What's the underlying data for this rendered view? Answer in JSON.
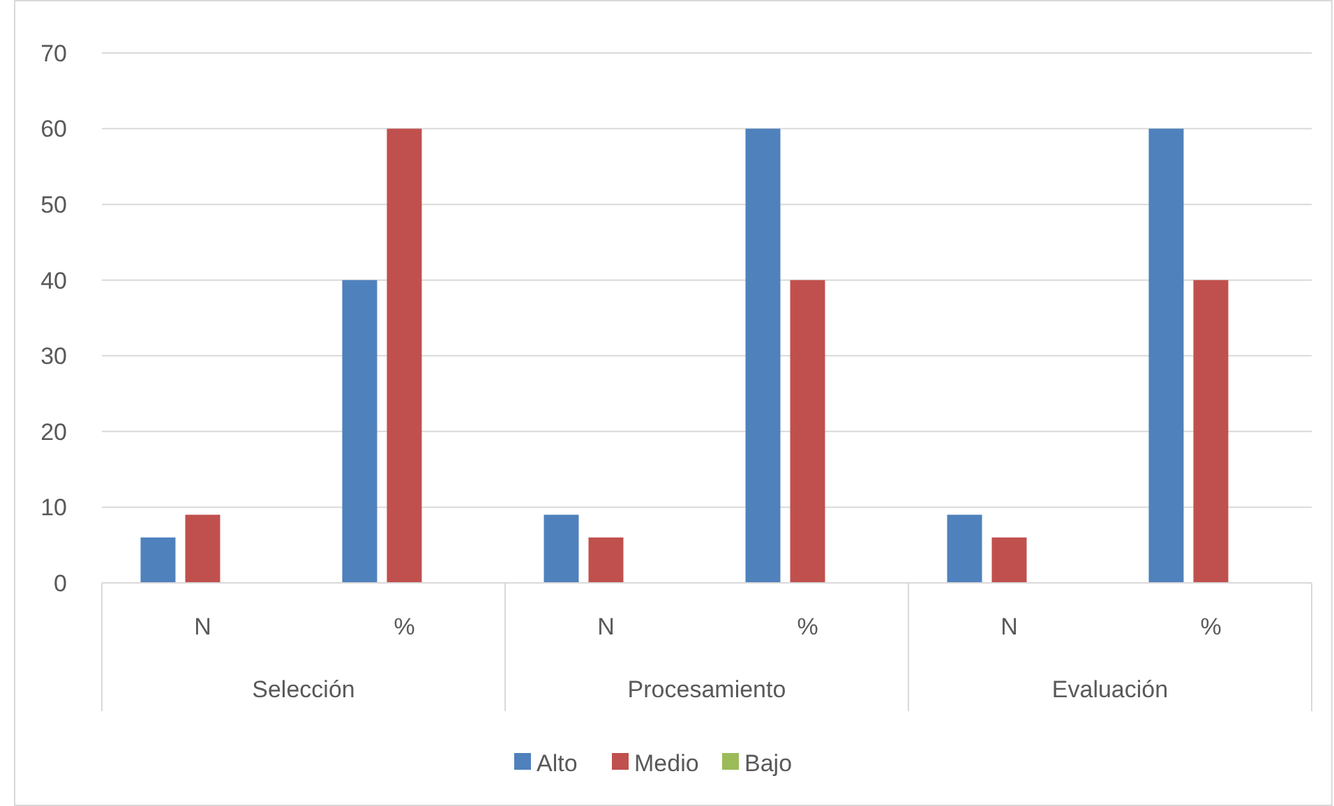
{
  "chart_data": {
    "type": "bar",
    "categories": [
      "N",
      "%",
      "N",
      "%",
      "N",
      "%"
    ],
    "annotations": [
      "Selección",
      "Procesamiento",
      "Evaluación"
    ],
    "series": [
      {
        "name": "Alto",
        "color": "#4f81bd",
        "values": [
          6,
          40,
          9,
          60,
          9,
          60
        ]
      },
      {
        "name": "Medio",
        "color": "#c0504d",
        "values": [
          9,
          60,
          6,
          40,
          6,
          40
        ]
      },
      {
        "name": "Bajo",
        "color": "#9bbb59",
        "values": [
          0,
          0,
          0,
          0,
          0,
          0
        ]
      }
    ],
    "ylim": [
      0,
      70
    ],
    "yticks": [
      0,
      10,
      20,
      30,
      40,
      50,
      60,
      70
    ],
    "grid": "y",
    "legend": "bottom"
  }
}
